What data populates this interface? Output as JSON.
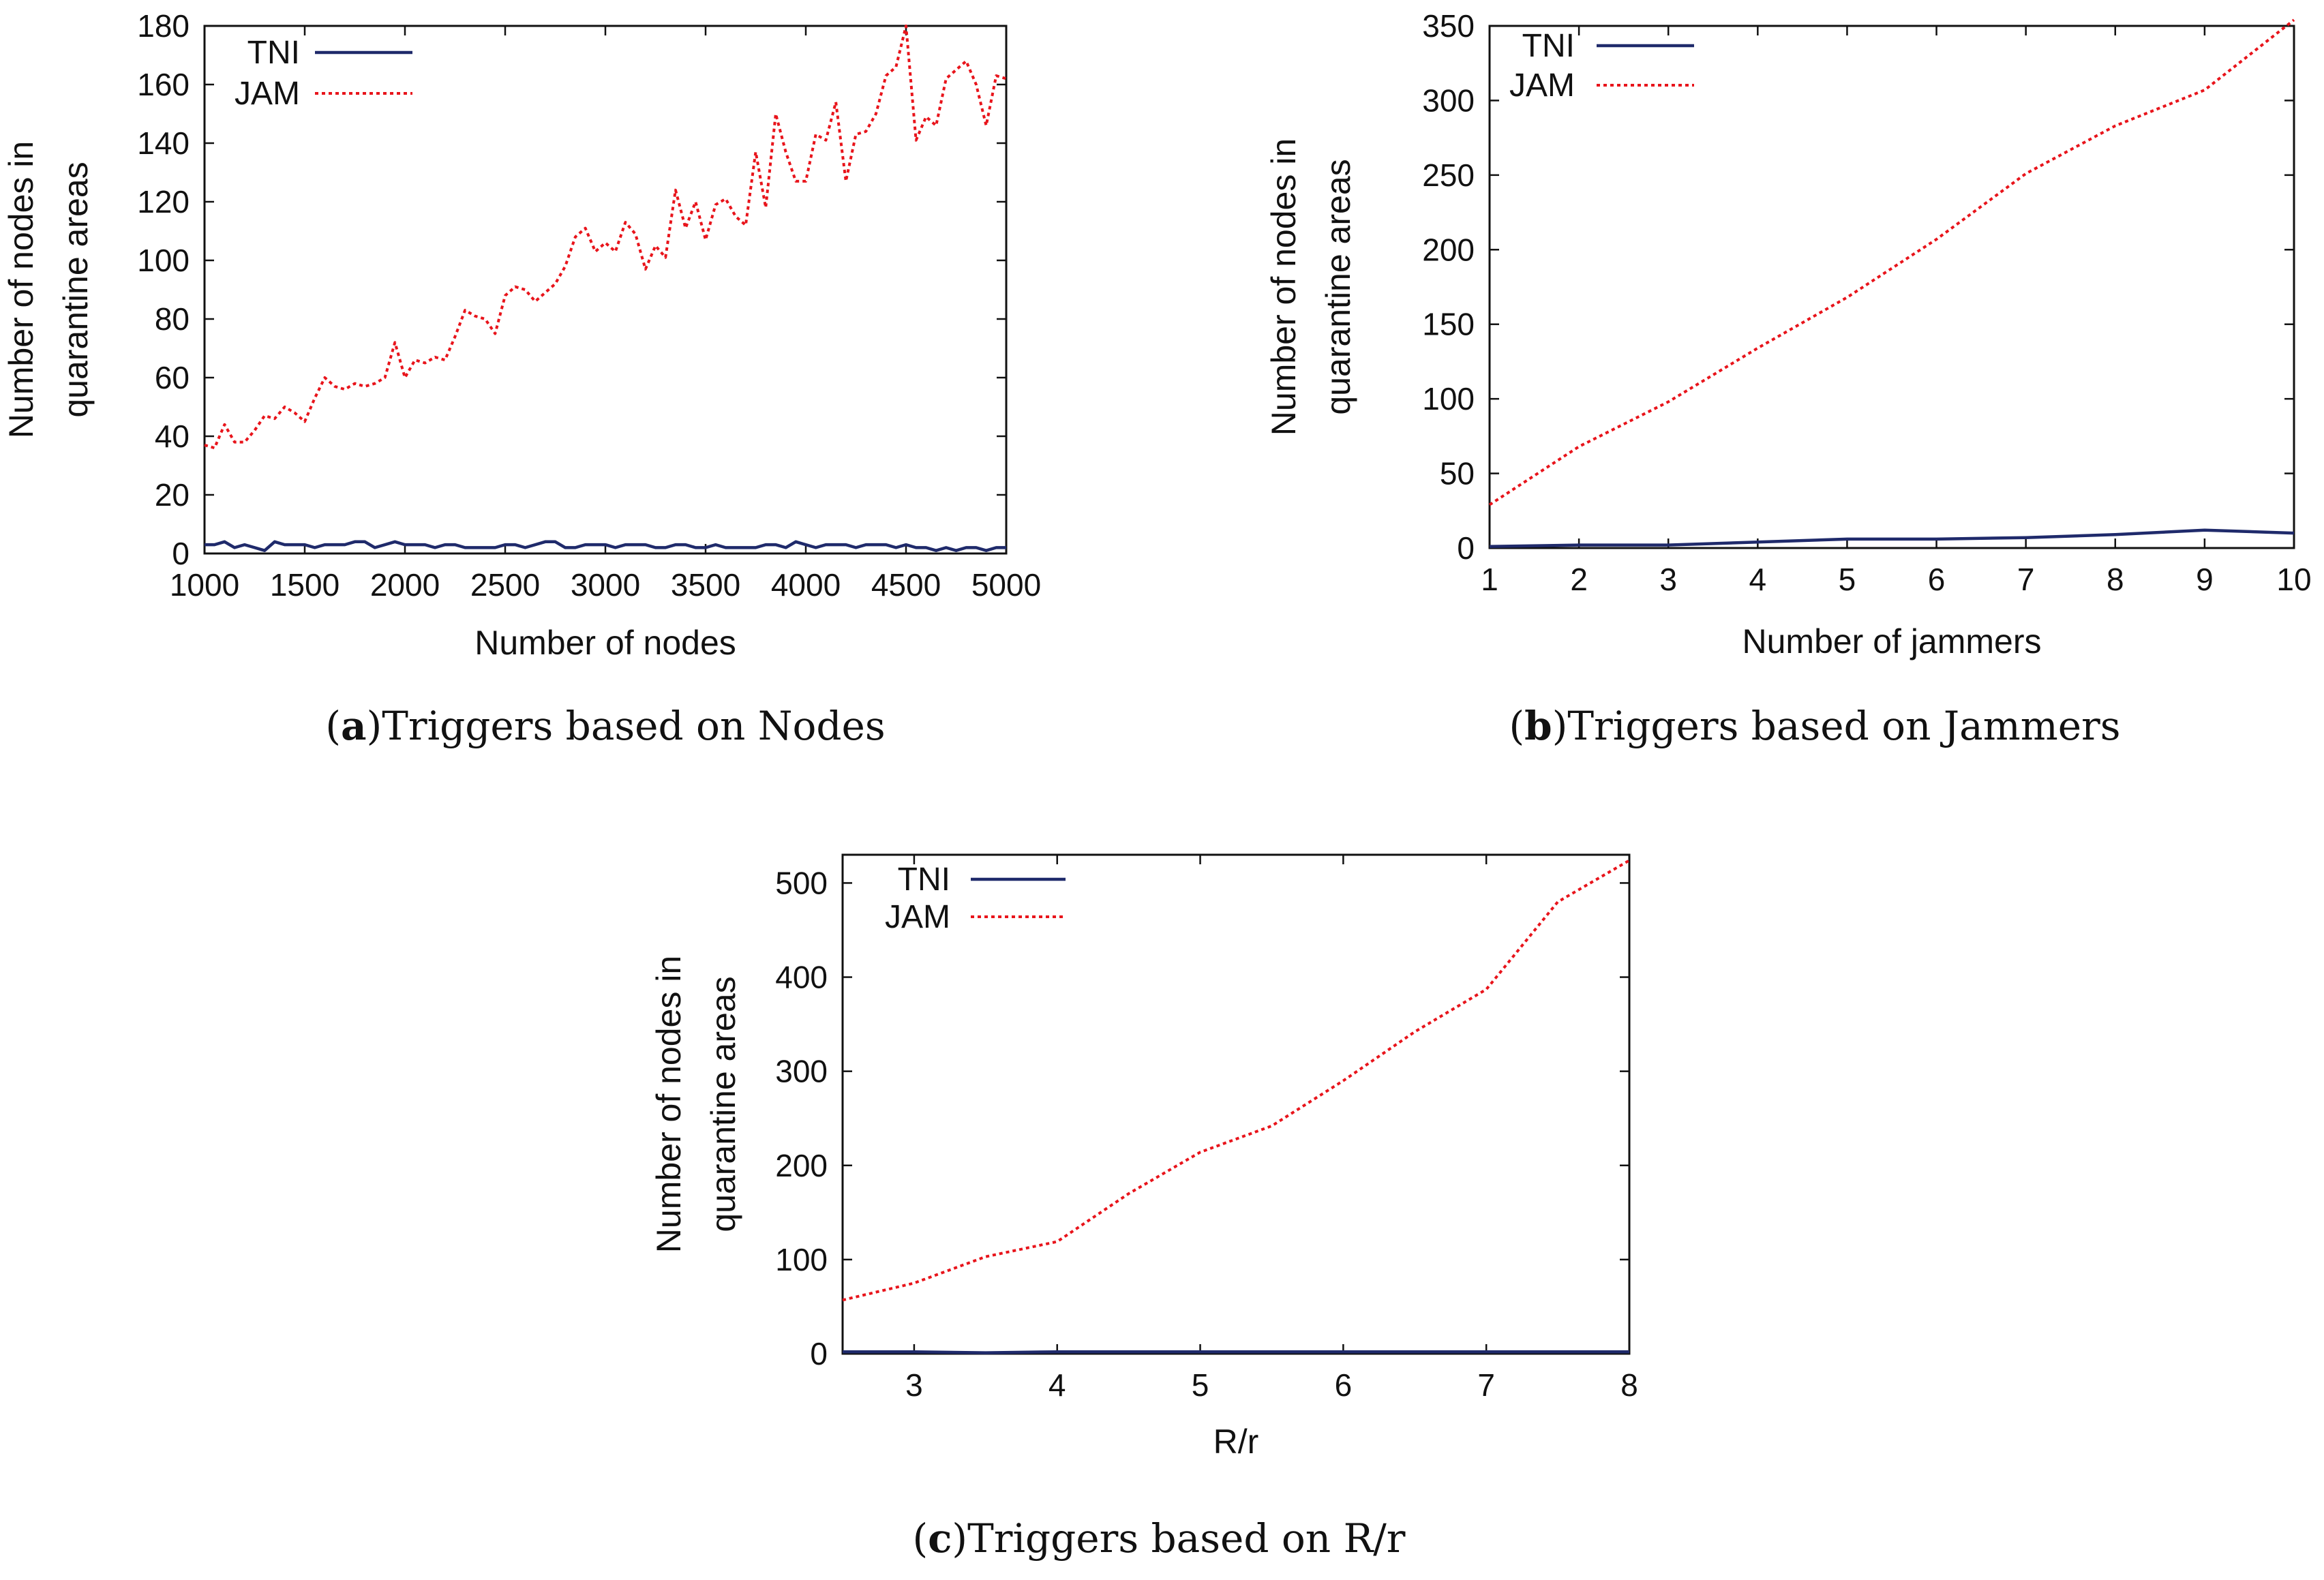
{
  "colors": {
    "tni": "#1f2a6b",
    "jam": "#e8141b",
    "axis": "#111111"
  },
  "chart_data": [
    {
      "id": "a",
      "type": "line",
      "caption_letter": "a",
      "caption_text": "Triggers based on Nodes",
      "xlabel": "Number of nodes",
      "ylabel_line1": "Number of nodes in",
      "ylabel_line2": "quarantine areas",
      "xlim": [
        1000,
        5000
      ],
      "ylim": [
        0,
        180
      ],
      "xticks": [
        1000,
        1500,
        2000,
        2500,
        3000,
        3500,
        4000,
        4500,
        5000
      ],
      "yticks": [
        0,
        20,
        40,
        60,
        80,
        100,
        120,
        140,
        160,
        180
      ],
      "legend_position": "top-left",
      "series": [
        {
          "name": "TNI",
          "style": "solid",
          "x": [
            1000,
            1050,
            1100,
            1150,
            1200,
            1250,
            1300,
            1350,
            1400,
            1450,
            1500,
            1550,
            1600,
            1650,
            1700,
            1750,
            1800,
            1850,
            1900,
            1950,
            2000,
            2050,
            2100,
            2150,
            2200,
            2250,
            2300,
            2350,
            2400,
            2450,
            2500,
            2550,
            2600,
            2650,
            2700,
            2750,
            2800,
            2850,
            2900,
            2950,
            3000,
            3050,
            3100,
            3150,
            3200,
            3250,
            3300,
            3350,
            3400,
            3450,
            3500,
            3550,
            3600,
            3650,
            3700,
            3750,
            3800,
            3850,
            3900,
            3950,
            4000,
            4050,
            4100,
            4150,
            4200,
            4250,
            4300,
            4350,
            4400,
            4450,
            4500,
            4550,
            4600,
            4650,
            4700,
            4750,
            4800,
            4850,
            4900,
            4950,
            5000
          ],
          "values": [
            3,
            3,
            4,
            2,
            3,
            2,
            1,
            4,
            3,
            3,
            3,
            2,
            3,
            3,
            3,
            4,
            4,
            2,
            3,
            4,
            3,
            3,
            3,
            2,
            3,
            3,
            2,
            2,
            2,
            2,
            3,
            3,
            2,
            3,
            4,
            4,
            2,
            2,
            3,
            3,
            3,
            2,
            3,
            3,
            3,
            2,
            2,
            3,
            3,
            2,
            2,
            3,
            2,
            2,
            2,
            2,
            3,
            3,
            2,
            4,
            3,
            2,
            3,
            3,
            3,
            2,
            3,
            3,
            3,
            2,
            3,
            2,
            2,
            1,
            2,
            1,
            2,
            2,
            1,
            2,
            2
          ]
        },
        {
          "name": "JAM",
          "style": "dotted",
          "x": [
            1000,
            1050,
            1100,
            1150,
            1200,
            1250,
            1300,
            1350,
            1400,
            1450,
            1500,
            1550,
            1600,
            1650,
            1700,
            1750,
            1800,
            1850,
            1900,
            1950,
            2000,
            2050,
            2100,
            2150,
            2200,
            2250,
            2300,
            2350,
            2400,
            2450,
            2500,
            2550,
            2600,
            2650,
            2700,
            2750,
            2800,
            2850,
            2900,
            2950,
            3000,
            3050,
            3100,
            3150,
            3200,
            3250,
            3300,
            3350,
            3400,
            3450,
            3500,
            3550,
            3600,
            3650,
            3700,
            3750,
            3800,
            3850,
            3900,
            3950,
            4000,
            4050,
            4100,
            4150,
            4200,
            4250,
            4300,
            4350,
            4400,
            4450,
            4500,
            4550,
            4600,
            4650,
            4700,
            4750,
            4800,
            4850,
            4900,
            4950,
            5000
          ],
          "values": [
            37,
            36,
            44,
            38,
            38,
            42,
            47,
            46,
            50,
            48,
            45,
            53,
            60,
            57,
            56,
            58,
            57,
            58,
            60,
            72,
            60,
            66,
            65,
            67,
            66,
            74,
            83,
            81,
            80,
            75,
            88,
            91,
            90,
            86,
            89,
            92,
            98,
            108,
            111,
            103,
            106,
            103,
            113,
            109,
            97,
            105,
            101,
            124,
            111,
            120,
            107,
            119,
            121,
            115,
            112,
            137,
            118,
            150,
            137,
            127,
            127,
            143,
            141,
            154,
            127,
            143,
            144,
            150,
            163,
            166,
            180,
            141,
            149,
            146,
            162,
            165,
            168,
            160,
            146,
            163,
            162
          ]
        }
      ]
    },
    {
      "id": "b",
      "type": "line",
      "caption_letter": "b",
      "caption_text": "Triggers based on Jammers",
      "xlabel": "Number of jammers",
      "ylabel_line1": "Number of nodes in",
      "ylabel_line2": "quarantine areas",
      "xlim": [
        1,
        10
      ],
      "ylim": [
        0,
        350
      ],
      "xticks": [
        1,
        2,
        3,
        4,
        5,
        6,
        7,
        8,
        9,
        10
      ],
      "yticks": [
        0,
        50,
        100,
        150,
        200,
        250,
        300,
        350
      ],
      "legend_position": "top-left",
      "series": [
        {
          "name": "TNI",
          "style": "solid",
          "x": [
            1,
            2,
            3,
            4,
            5,
            6,
            7,
            8,
            9,
            10
          ],
          "values": [
            1,
            2,
            2,
            4,
            6,
            6,
            7,
            9,
            12,
            10
          ]
        },
        {
          "name": "JAM",
          "style": "dotted",
          "x": [
            1,
            2,
            3,
            4,
            5,
            6,
            7,
            8,
            9,
            10
          ],
          "values": [
            29,
            68,
            98,
            134,
            168,
            207,
            251,
            283,
            307,
            354
          ]
        }
      ]
    },
    {
      "id": "c",
      "type": "line",
      "caption_letter": "c",
      "caption_text": "Triggers based on R/r",
      "xlabel": "R/r",
      "ylabel_line1": "Number of nodes in",
      "ylabel_line2": "quarantine areas",
      "xlim": [
        2.5,
        8
      ],
      "ylim": [
        0,
        530
      ],
      "xticks": [
        3,
        4,
        5,
        6,
        7,
        8
      ],
      "yticks": [
        0,
        100,
        200,
        300,
        400,
        500
      ],
      "legend_position": "top-left",
      "series": [
        {
          "name": "TNI",
          "style": "solid",
          "x": [
            2.5,
            3,
            3.5,
            4,
            4.5,
            5,
            5.5,
            6,
            6.5,
            7,
            7.5,
            8
          ],
          "values": [
            2,
            2,
            1,
            2,
            2,
            2,
            2,
            2,
            2,
            2,
            2,
            2
          ]
        },
        {
          "name": "JAM",
          "style": "dotted",
          "x": [
            2.5,
            3,
            3.5,
            4,
            4.5,
            5,
            5.5,
            6,
            6.5,
            7,
            7.5,
            8
          ],
          "values": [
            57,
            75,
            103,
            119,
            170,
            214,
            242,
            290,
            342,
            387,
            480,
            524
          ]
        }
      ]
    }
  ]
}
